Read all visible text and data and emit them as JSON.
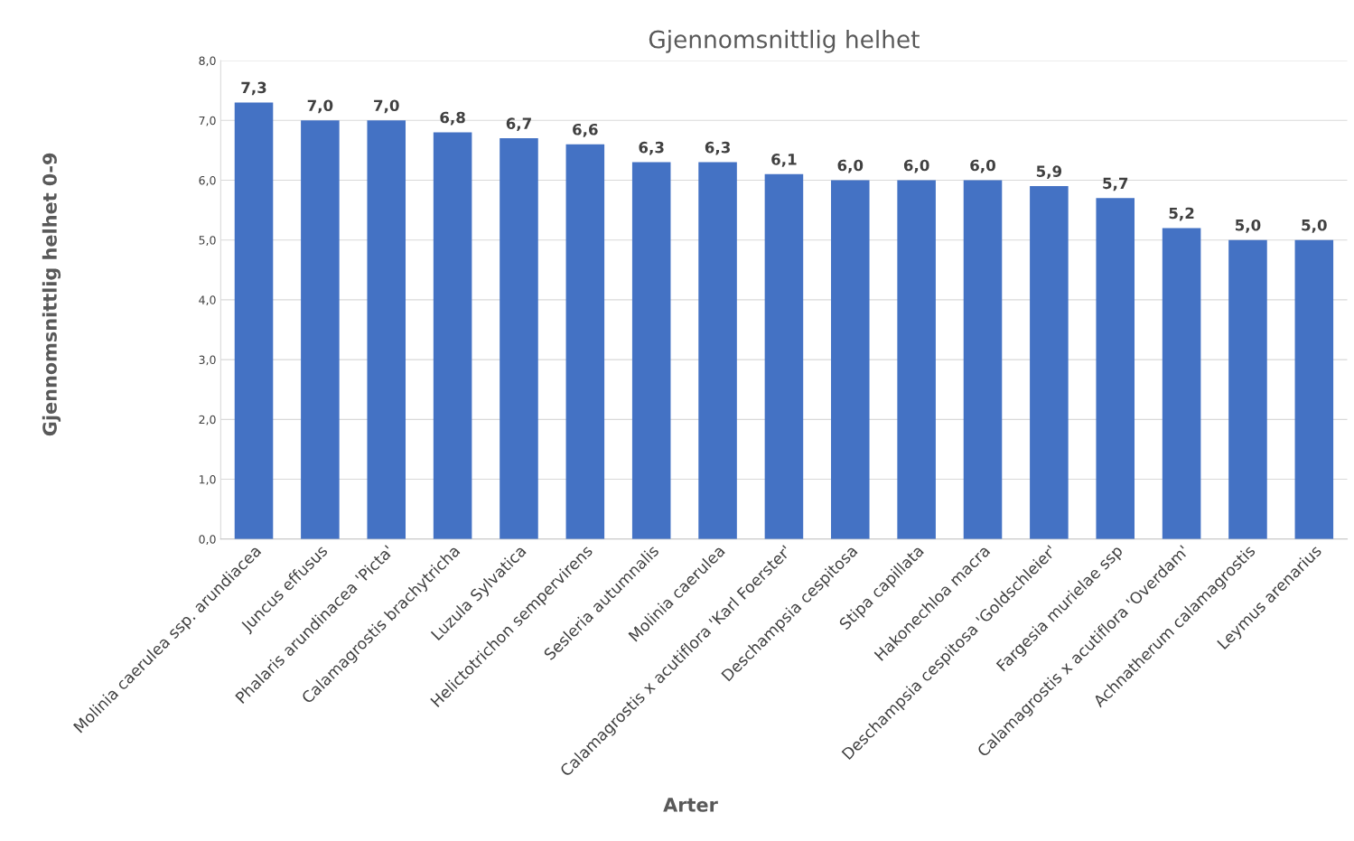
{
  "chart_data": {
    "type": "bar",
    "title": "Gjennomsnittlig helhet",
    "xlabel": "Arter",
    "ylabel": "Gjennomsnittlig helhet 0-9",
    "categories": [
      "Molinia caerulea ssp. arundiacea",
      "Juncus effusus",
      "Phalaris arundinacea 'Picta'",
      "Calamagrostis brachytricha",
      "Luzula Sylvatica",
      "Helictotrichon sempervirens",
      "Sesleria autumnalis",
      "Molinia caerulea",
      "Calamagrostis x acutiflora 'Karl Foerster'",
      "Deschampsia cespitosa",
      "Stipa capillata",
      "Hakonechloa macra",
      "Deschampsia cespitosa 'Goldschleier'",
      "Fargesia murielae ssp",
      "Calamagrostis x acutiflora 'Overdam'",
      "Achnatherum calamagrostis",
      "Leymus arenarius"
    ],
    "values": [
      7.3,
      7.0,
      7.0,
      6.8,
      6.7,
      6.6,
      6.3,
      6.3,
      6.1,
      6.0,
      6.0,
      6.0,
      5.9,
      5.7,
      5.2,
      5.0,
      5.0
    ],
    "value_labels": [
      "7,3",
      "7,0",
      "7,0",
      "6,8",
      "6,7",
      "6,6",
      "6,3",
      "6,3",
      "6,1",
      "6,0",
      "6,0",
      "6,0",
      "5,9",
      "5,7",
      "5,2",
      "5,0",
      "5,0"
    ],
    "color": "#4472c4",
    "ylim": [
      0,
      8
    ],
    "yticks": [
      {
        "value": 0,
        "label": "0,0"
      },
      {
        "value": 1,
        "label": "1,0"
      },
      {
        "value": 2,
        "label": "2,0"
      },
      {
        "value": 3,
        "label": "3,0"
      },
      {
        "value": 4,
        "label": "4,0"
      },
      {
        "value": 5,
        "label": "5,0"
      },
      {
        "value": 6,
        "label": "6,0"
      },
      {
        "value": 7,
        "label": "7,0"
      },
      {
        "value": 8,
        "label": "8,0"
      }
    ],
    "grid": "y",
    "legend": false
  }
}
